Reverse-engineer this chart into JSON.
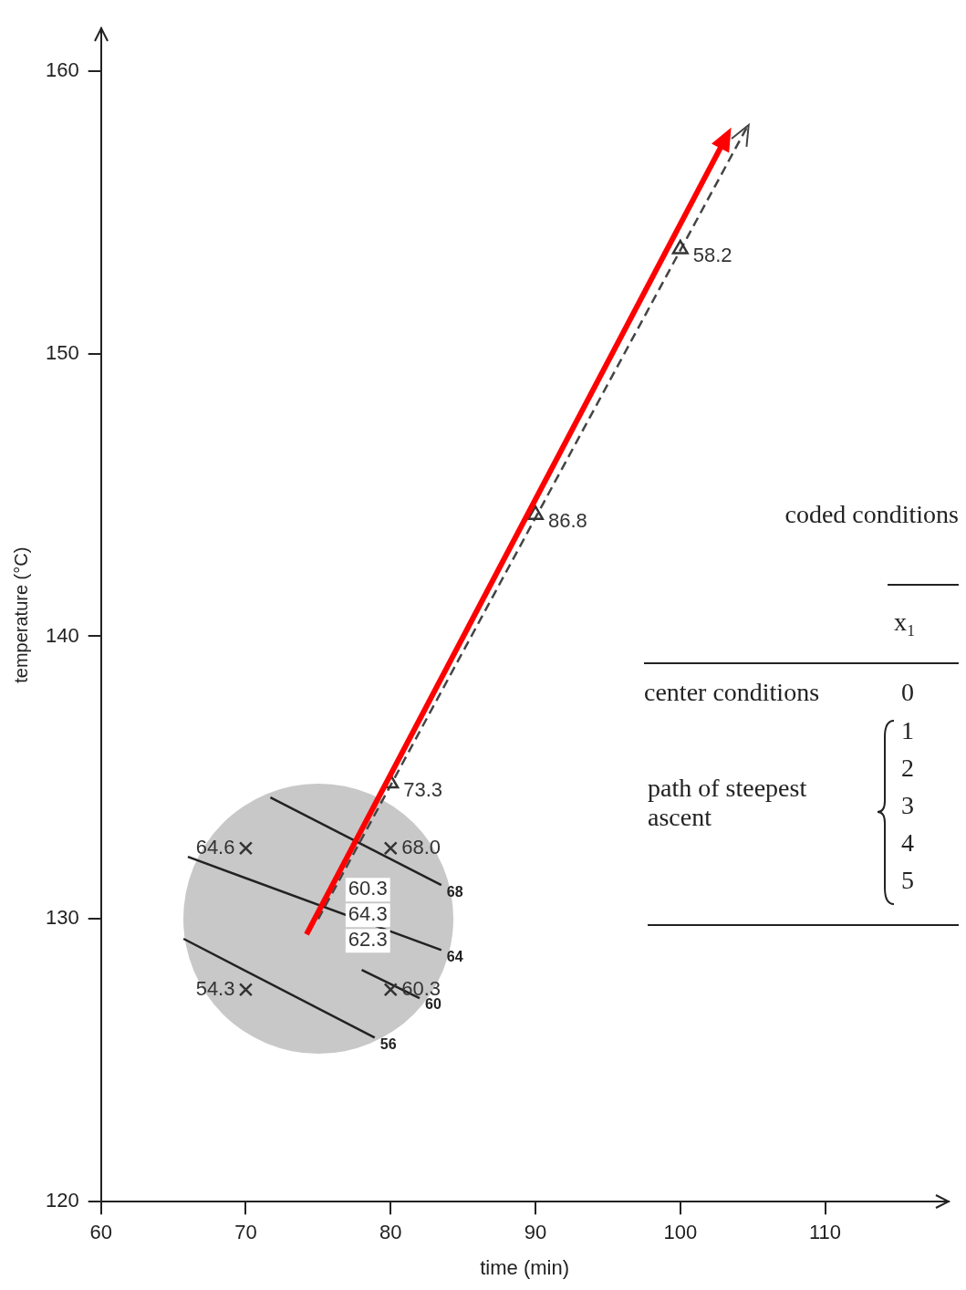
{
  "chart_data": {
    "type": "scatter",
    "xlabel": "time (min)",
    "ylabel": "temperature (°C)",
    "xlim": [
      60,
      118.5
    ],
    "xticks": [
      60,
      70,
      80,
      90,
      100,
      110
    ],
    "ylim": [
      120,
      161.5
    ],
    "yticks": [
      120,
      130,
      140,
      150,
      160
    ],
    "series": [
      {
        "marker": "cross",
        "color": "#333333",
        "x": [
          70,
          80,
          70,
          80
        ],
        "values": [
          127.5,
          127.5,
          132.5,
          132.5
        ]
      },
      {
        "marker": "triangle",
        "color": "#333333",
        "x": [
          80,
          90,
          100
        ],
        "values": [
          134.8,
          144.3,
          153.7
        ]
      },
      {
        "type": "line",
        "name": "56",
        "color": "#222222",
        "x": [
          65.7,
          78.9
        ],
        "values": [
          129.3,
          125.8
        ]
      },
      {
        "type": "line",
        "name": "60",
        "color": "#222222",
        "x": [
          78,
          82
        ],
        "values": [
          128.2,
          127.2
        ]
      },
      {
        "type": "line",
        "name": "64",
        "color": "#222222",
        "x": [
          66,
          83.5
        ],
        "values": [
          132.2,
          128.9
        ]
      },
      {
        "type": "line",
        "name": "68",
        "color": "#222222",
        "x": [
          71.7,
          83.5
        ],
        "values": [
          134.3,
          131.2
        ]
      },
      {
        "type": "line",
        "line_style": "dashed",
        "color": "#444444",
        "x": [
          75,
          104.7
        ],
        "values": [
          130,
          158.1
        ]
      }
    ],
    "annotations": [
      {
        "text": "54.3",
        "x": 70,
        "y": 127.5
      },
      {
        "text": "60.3",
        "x": 80,
        "y": 127.5
      },
      {
        "text": "64.6",
        "x": 70,
        "y": 132.5
      },
      {
        "text": "68.0",
        "x": 80,
        "y": 132.5
      },
      {
        "text": "60.3",
        "x": 75,
        "y": 130
      },
      {
        "text": "64.3",
        "x": 75,
        "y": 130
      },
      {
        "text": "62.3",
        "x": 75,
        "y": 130
      },
      {
        "text": "73.3",
        "x": 80,
        "y": 134.8
      },
      {
        "text": "86.8",
        "x": 90,
        "y": 144.3
      },
      {
        "text": "58.2",
        "x": 100,
        "y": 153.7
      },
      "coded conditions",
      "x₁",
      "center conditions",
      "0",
      "path of steepest ascent",
      "1",
      "2",
      "3",
      "4",
      "5"
    ]
  }
}
